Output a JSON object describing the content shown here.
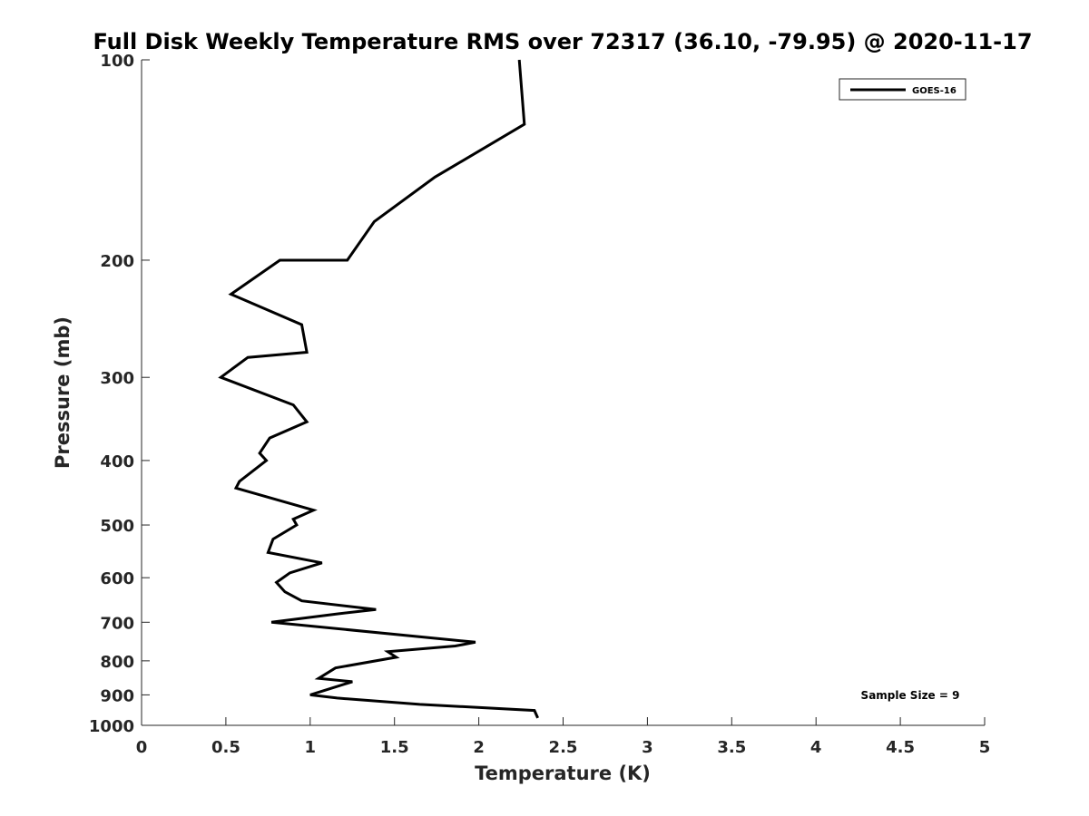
{
  "chart_data": {
    "type": "line",
    "title": "Full Disk Weekly Temperature RMS over 72317 (36.10, -79.95) @ 2020-11-17",
    "xlabel": "Temperature (K)",
    "ylabel": "Pressure (mb)",
    "xlim": [
      0,
      5
    ],
    "ylim": [
      100,
      1000
    ],
    "y_scale": "log",
    "y_reversed": true,
    "grid": false,
    "legend_position": "top-right",
    "x_ticks": [
      0,
      0.5,
      1,
      1.5,
      2,
      2.5,
      3,
      3.5,
      4,
      4.5,
      5
    ],
    "x_tick_labels": [
      "0",
      "0.5",
      "1",
      "1.5",
      "2",
      "2.5",
      "3",
      "3.5",
      "4",
      "4.5",
      "5"
    ],
    "y_ticks": [
      100,
      200,
      300,
      400,
      500,
      600,
      700,
      800,
      900,
      1000
    ],
    "y_tick_labels": [
      "100",
      "200",
      "300",
      "400",
      "500",
      "600",
      "700",
      "800",
      "900",
      "1000"
    ],
    "series": [
      {
        "name": "GOES-16",
        "color": "#000000",
        "points": [
          [
            2.24,
            100
          ],
          [
            2.27,
            125
          ],
          [
            1.74,
            150
          ],
          [
            1.38,
            175
          ],
          [
            1.22,
            200
          ],
          [
            0.82,
            200
          ],
          [
            0.53,
            225
          ],
          [
            0.95,
            250
          ],
          [
            0.98,
            275
          ],
          [
            0.63,
            280
          ],
          [
            0.47,
            300
          ],
          [
            0.9,
            330
          ],
          [
            0.98,
            350
          ],
          [
            0.76,
            370
          ],
          [
            0.7,
            390
          ],
          [
            0.74,
            400
          ],
          [
            0.58,
            430
          ],
          [
            0.56,
            440
          ],
          [
            1.02,
            475
          ],
          [
            0.9,
            490
          ],
          [
            0.92,
            500
          ],
          [
            0.78,
            525
          ],
          [
            0.75,
            550
          ],
          [
            1.07,
            570
          ],
          [
            0.88,
            590
          ],
          [
            0.8,
            610
          ],
          [
            0.85,
            630
          ],
          [
            0.95,
            650
          ],
          [
            1.39,
            670
          ],
          [
            1.16,
            680
          ],
          [
            0.77,
            700
          ],
          [
            1.98,
            750
          ],
          [
            1.86,
            760
          ],
          [
            1.46,
            775
          ],
          [
            1.51,
            790
          ],
          [
            1.15,
            820
          ],
          [
            1.05,
            850
          ],
          [
            1.25,
            860
          ],
          [
            1.0,
            900
          ],
          [
            1.16,
            910
          ],
          [
            1.65,
            930
          ],
          [
            2.33,
            950
          ],
          [
            2.35,
            975
          ]
        ]
      }
    ],
    "annotations": [
      "Sample Size = 9"
    ]
  }
}
